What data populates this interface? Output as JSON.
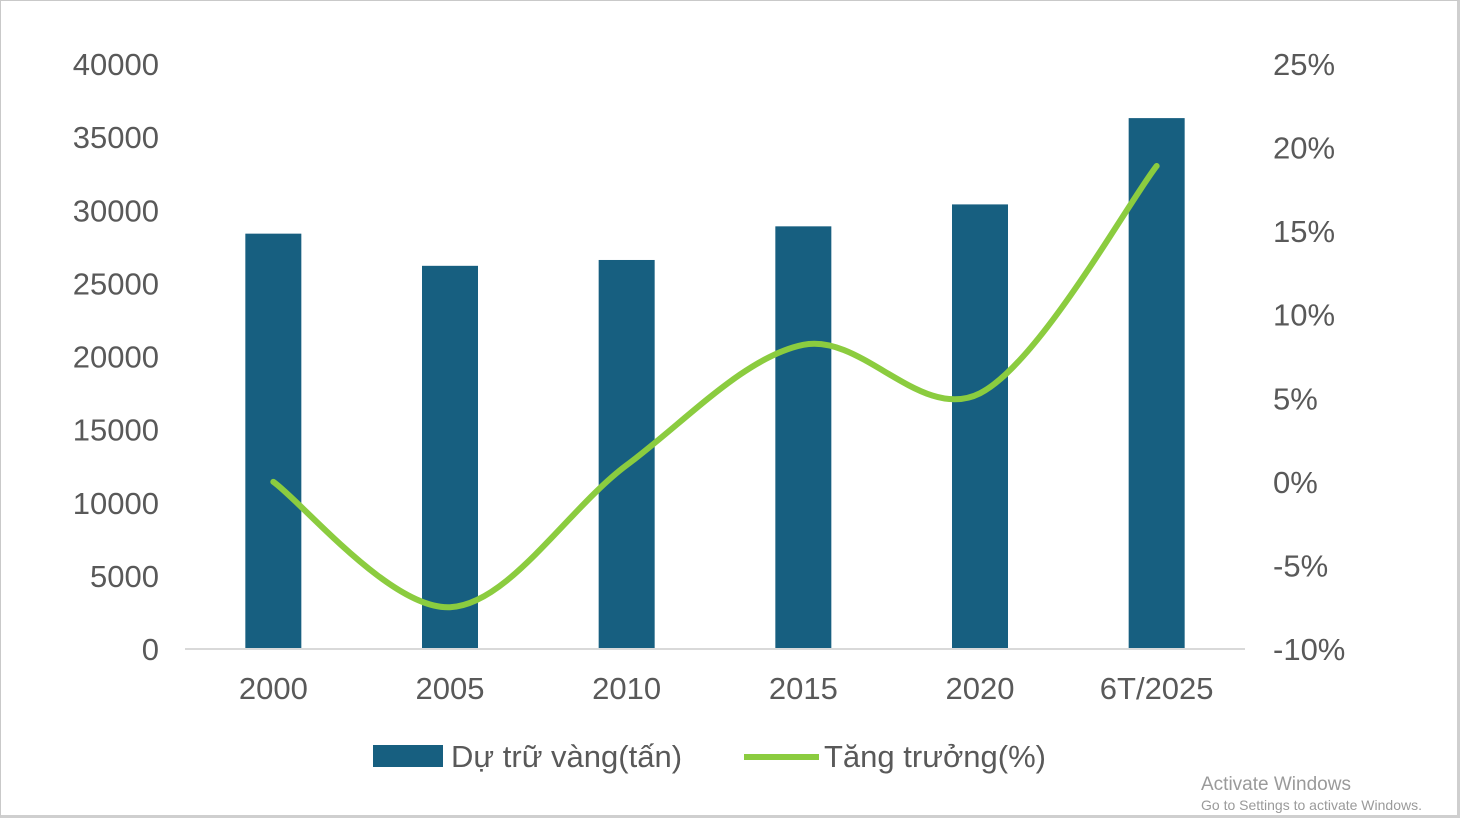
{
  "colors": {
    "bar": "#175f80",
    "line": "#8bcc3f",
    "axis_text": "#595959",
    "axis_line": "#d9d9d9"
  },
  "chart_data": {
    "type": "bar",
    "categories": [
      "2000",
      "2005",
      "2010",
      "2015",
      "2020",
      "6T/2025"
    ],
    "series": [
      {
        "name": "Dự trữ vàng(tấn)",
        "type": "bar",
        "axis": "left",
        "values": [
          28400,
          26200,
          26600,
          28900,
          30400,
          36300
        ]
      },
      {
        "name": "Tăng trưởng(%)",
        "type": "line",
        "smooth": true,
        "axis": "right",
        "values": [
          0,
          -7.5,
          1.0,
          8.2,
          5.3,
          18.9
        ]
      }
    ],
    "left_axis": {
      "ylim": [
        0,
        40000
      ],
      "ticks": [
        "0",
        "5000",
        "10000",
        "15000",
        "20000",
        "25000",
        "30000",
        "35000",
        "40000"
      ]
    },
    "right_axis": {
      "ylim": [
        -10,
        25
      ],
      "unit": "%",
      "ticks": [
        "-10%",
        "-5%",
        "0%",
        "5%",
        "10%",
        "15%",
        "20%",
        "25%"
      ]
    },
    "grid": false,
    "legend": "bottom"
  },
  "watermark": {
    "title": "Activate Windows",
    "subtitle": "Go to Settings to activate Windows."
  }
}
